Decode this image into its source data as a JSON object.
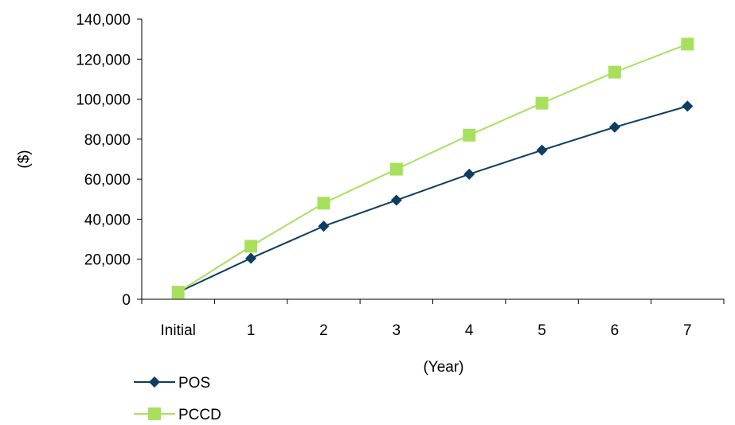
{
  "chart_data": {
    "type": "line",
    "categories": [
      "Initial",
      "1",
      "2",
      "3",
      "4",
      "5",
      "6",
      "7"
    ],
    "series": [
      {
        "name": "POS",
        "values": [
          3500,
          20500,
          36500,
          49500,
          62500,
          74500,
          86000,
          96500
        ],
        "color": "#0e3d63",
        "marker": "diamond"
      },
      {
        "name": "PCCD",
        "values": [
          3500,
          26500,
          48000,
          65000,
          82000,
          98000,
          113500,
          127500
        ],
        "color": "#a8e05e",
        "marker": "square"
      }
    ],
    "xlabel": "(Year)",
    "ylabel": "($)",
    "ylim": [
      0,
      140000
    ],
    "yticks": [
      "0",
      "20,000",
      "40,000",
      "60,000",
      "80,000",
      "100,000",
      "120,000",
      "140,000"
    ],
    "ytick_values": [
      0,
      20000,
      40000,
      60000,
      80000,
      100000,
      120000,
      140000
    ],
    "grid": false,
    "legend_position": "bottom-left"
  }
}
